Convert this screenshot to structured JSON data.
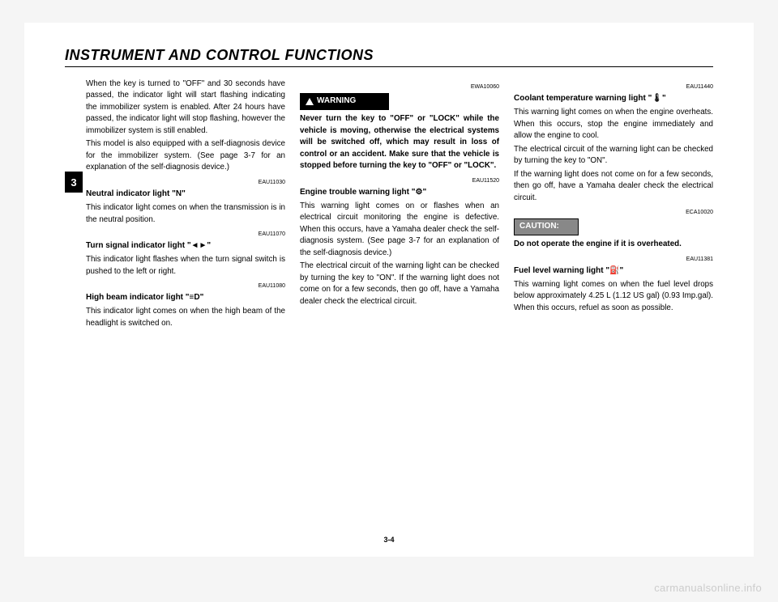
{
  "header": "INSTRUMENT AND CONTROL FUNCTIONS",
  "side_tab": "3",
  "page_num": "3-4",
  "watermark": "carmanualsonline.info",
  "col1": {
    "p1": "When the key is turned to \"OFF\" and 30 seconds have passed, the indicator light will start flashing indicating the immobilizer system is enabled. After 24 hours have passed, the indicator light will stop flashing, however the immobilizer system is still enabled.",
    "p2": "This model is also equipped with a self-diagnosis device for the immobilizer system. (See page 3-7 for an explanation of the self-diagnosis device.)",
    "code1": "EAU11030",
    "neutral_title": "Neutral indicator light \"N\"",
    "neutral_body": "This indicator light comes on when the transmission is in the neutral position.",
    "code2": "EAU11070",
    "turn_title": "Turn signal indicator light \"◄►\"",
    "turn_body": "This indicator light flashes when the turn signal switch is pushed to the left or right.",
    "code3": "EAU11080",
    "high_title": "High beam indicator light \"≡D\"",
    "high_body": "This indicator light comes on when the high beam of the headlight is switched on."
  },
  "col2": {
    "warning_label": "WARNING",
    "code1": "EWA10060",
    "warning_body": "Never turn the key to \"OFF\" or \"LOCK\" while the vehicle is moving, otherwise the electrical systems will be switched off, which may result in loss of control or an accident. Make sure that the vehicle is stopped before turning the key to \"OFF\" or \"LOCK\".",
    "code2": "EAU11520",
    "trouble_title": "Engine trouble warning light \"⚙\"",
    "trouble_body1": "This warning light comes on or flashes when an electrical circuit monitoring the engine is defective. When this occurs, have a Yamaha dealer check the self-diagnosis system. (See page 3-7 for an explanation of the self-diagnosis device.)",
    "trouble_body2": "The electrical circuit of the warning light can be checked by turning the key to \"ON\". If the warning light does not come on for a few seconds, then go off, have a Yamaha dealer check the electrical circuit."
  },
  "col3": {
    "code1": "EAU11440",
    "coolant_title": "Coolant temperature warning light \"🌡\"",
    "coolant_body1": "This warning light comes on when the engine overheats. When this occurs, stop the engine immediately and allow the engine to cool.",
    "coolant_body2": "The electrical circuit of the warning light can be checked by turning the key to \"ON\".",
    "coolant_body3": "If the warning light does not come on for a few seconds, then go off, have a Yamaha dealer check the electrical circuit.",
    "code2": "ECA10020",
    "caution_label": "CAUTION:",
    "caution_body": "Do not operate the engine if it is overheated.",
    "code3": "EAU11381",
    "fuel_title": "Fuel level warning light \"⛽\"",
    "fuel_body": "This warning light comes on when the fuel level drops below approximately 4.25 L (1.12 US gal) (0.93 Imp.gal). When this occurs, refuel as soon as possible."
  }
}
